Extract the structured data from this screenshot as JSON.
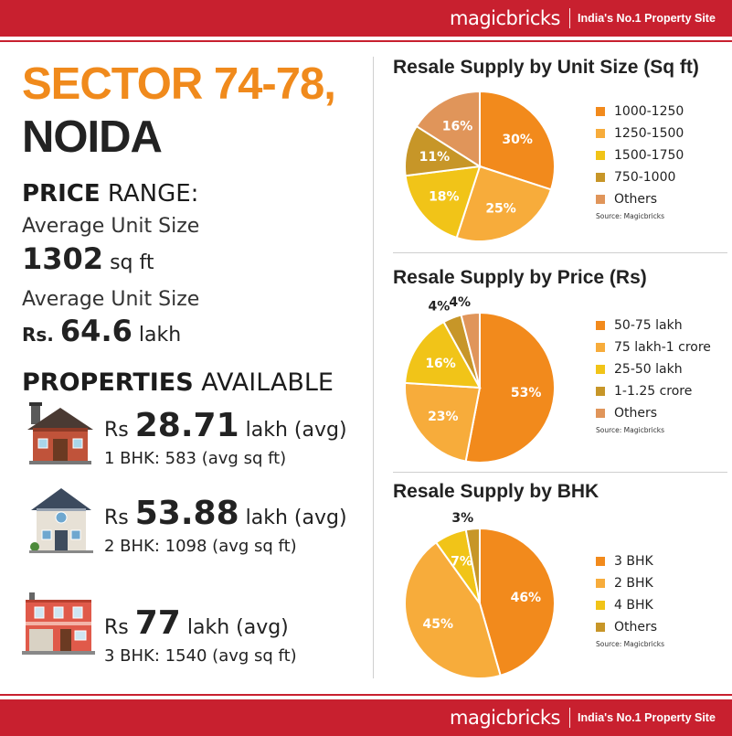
{
  "brand": {
    "logo": "magicbricks",
    "tagline": "India's No.1 Property Site"
  },
  "location": {
    "line1": "SECTOR 74-78,",
    "line2": "NOIDA"
  },
  "price_range": {
    "heading_bold": "PRICE",
    "heading_rest": "RANGE:",
    "size_label": "Average Unit Size",
    "size_value": "1302",
    "size_unit": "sq ft",
    "price_label": "Average Unit Size",
    "price_prefix": "Rs.",
    "price_value": "64.6",
    "price_unit": "lakh"
  },
  "properties": {
    "heading_bold": "PROPERTIES",
    "heading_rest": "AVAILABLE",
    "items": [
      {
        "prefix": "Rs",
        "value": "28.71",
        "suffix": "lakh (avg)",
        "detail": "1 BHK: 583 (avg sq ft)",
        "icon": "brick-house-icon"
      },
      {
        "prefix": "Rs",
        "value": "53.88",
        "suffix": "lakh (avg)",
        "detail": "2 BHK: 1098 (avg sq ft)",
        "icon": "villa-icon"
      },
      {
        "prefix": "Rs",
        "value": "77",
        "suffix": "lakh (avg)",
        "detail": "3 BHK: 1540 (avg sq ft)",
        "icon": "shop-house-icon"
      }
    ]
  },
  "chart_data": [
    {
      "type": "pie",
      "title": "Resale Supply by Unit Size (Sq ft)",
      "source": "Source: Magicbricks",
      "slices": [
        {
          "label": "1000-1250",
          "value": 30,
          "color": "#f28a1c"
        },
        {
          "label": "1250-1500",
          "value": 25,
          "color": "#f7ac3b"
        },
        {
          "label": "1500-1750",
          "value": 18,
          "color": "#f1c418"
        },
        {
          "label": "750-1000",
          "value": 11,
          "color": "#c79628"
        },
        {
          "label": "Others",
          "value": 16,
          "color": "#e0955a"
        }
      ]
    },
    {
      "type": "pie",
      "title": "Resale Supply by Price (Rs)",
      "source": "Source: Magicbricks",
      "slices": [
        {
          "label": "50-75 lakh",
          "value": 53,
          "color": "#f28a1c"
        },
        {
          "label": "75 lakh-1 crore",
          "value": 23,
          "color": "#f7ac3b"
        },
        {
          "label": "25-50 lakh",
          "value": 16,
          "color": "#f1c418"
        },
        {
          "label": "1-1.25 crore",
          "value": 4,
          "color": "#c79628"
        },
        {
          "label": "Others",
          "value": 4,
          "color": "#e0955a"
        }
      ]
    },
    {
      "type": "pie",
      "title": "Resale Supply by BHK",
      "source": "Source: Magicbricks",
      "slices": [
        {
          "label": "3 BHK",
          "value": 46,
          "color": "#f28a1c"
        },
        {
          "label": "2 BHK",
          "value": 45,
          "color": "#f7ac3b"
        },
        {
          "label": "4 BHK",
          "value": 7,
          "color": "#f1c418"
        },
        {
          "label": "Others",
          "value": 3,
          "color": "#c79628"
        }
      ]
    }
  ]
}
